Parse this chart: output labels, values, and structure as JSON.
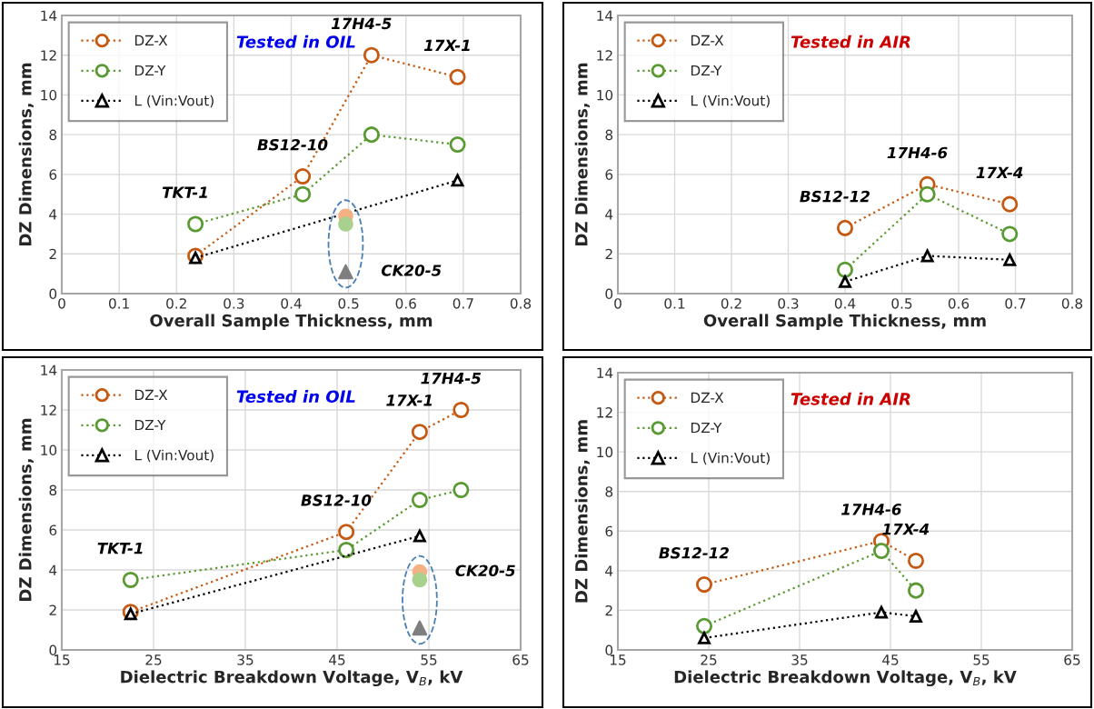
{
  "chart_data": [
    {
      "type": "line",
      "xlabel": "Overall Sample Thickness, mm",
      "ylabel": "DZ Dimensions, mm",
      "xlim": [
        0,
        0.8
      ],
      "xticks": [
        0,
        0.1,
        0.2,
        0.3,
        0.4,
        0.5,
        0.6,
        0.7,
        0.8
      ],
      "ylim": [
        0,
        14
      ],
      "yticks": [
        0,
        2,
        4,
        6,
        8,
        10,
        12,
        14
      ],
      "grid": true,
      "legend": "top left",
      "line_style": "dotted",
      "series": [
        {
          "name": "DZ-X",
          "color": "#c65911",
          "marker": "circle",
          "x": [
            0.233,
            0.42,
            0.54,
            0.69
          ],
          "values": [
            1.9,
            5.9,
            12.0,
            10.9
          ]
        },
        {
          "name": "DZ-Y",
          "color": "#5a9a32",
          "marker": "circle",
          "x": [
            0.233,
            0.42,
            0.54,
            0.69
          ],
          "values": [
            3.5,
            5.0,
            8.0,
            7.5
          ]
        },
        {
          "name": "L (Vin:Vout)",
          "color": "#000000",
          "marker": "triangle",
          "x": [
            0.233,
            0.69
          ],
          "values": [
            1.8,
            5.7
          ]
        },
        {
          "type": "scatter",
          "color": "#f4b183",
          "marker": "circle",
          "x": [
            0.495
          ],
          "values": [
            3.9
          ]
        },
        {
          "type": "scatter",
          "color": "#a9d18e",
          "marker": "circle",
          "x": [
            0.495
          ],
          "values": [
            3.5
          ]
        },
        {
          "type": "scatter",
          "color": "#7f7f7f",
          "marker": "triangle",
          "x": [
            0.495
          ],
          "values": [
            1.1
          ]
        }
      ],
      "annotations": [
        "Tested in OIL",
        {
          "text": "TKT-1",
          "x": 0.233,
          "y": 3.5
        },
        {
          "text": "BS12-10",
          "x": 0.42,
          "y": 5.9
        },
        {
          "text": "17H4-5",
          "x": 0.54,
          "y": 12.0
        },
        {
          "text": "17X-1",
          "x": 0.69,
          "y": 10.9
        },
        {
          "text": "CK20-5",
          "x": 0.495,
          "y": 1.1
        }
      ]
    },
    {
      "type": "line",
      "xlabel": "Overall Sample Thickness, mm",
      "ylabel": "DZ Dimensions, mm",
      "xlim": [
        0,
        0.8
      ],
      "xticks": [
        0,
        0.1,
        0.2,
        0.3,
        0.4,
        0.5,
        0.6,
        0.7,
        0.8
      ],
      "ylim": [
        0,
        14
      ],
      "yticks": [
        0,
        2,
        4,
        6,
        8,
        10,
        12,
        14
      ],
      "grid": true,
      "legend": "top left",
      "line_style": "dotted",
      "series": [
        {
          "name": "DZ-X",
          "color": "#c65911",
          "marker": "circle",
          "x": [
            0.4,
            0.545,
            0.69
          ],
          "values": [
            3.3,
            5.5,
            4.5
          ]
        },
        {
          "name": "DZ-Y",
          "color": "#5a9a32",
          "marker": "circle",
          "x": [
            0.4,
            0.545,
            0.69
          ],
          "values": [
            1.2,
            5.0,
            3.0
          ]
        },
        {
          "name": "L (Vin:Vout)",
          "color": "#000000",
          "marker": "triangle",
          "x": [
            0.4,
            0.545,
            0.69
          ],
          "values": [
            0.6,
            1.9,
            1.7
          ]
        }
      ],
      "annotations": [
        "Tested in AIR",
        {
          "text": "BS12-12",
          "x": 0.4,
          "y": 3.3
        },
        {
          "text": "17H4-6",
          "x": 0.545,
          "y": 5.5
        },
        {
          "text": "17X-4",
          "x": 0.69,
          "y": 4.5
        }
      ]
    },
    {
      "type": "line",
      "xlabel": "Dielectric Breakdown Voltage, V$_{B}$, kV",
      "ylabel": "DZ Dimensions, mm",
      "xlim": [
        15,
        65
      ],
      "xticks": [
        15,
        25,
        35,
        45,
        55,
        65
      ],
      "ylim": [
        0,
        14
      ],
      "yticks": [
        0,
        2,
        4,
        6,
        8,
        10,
        12,
        14
      ],
      "grid": true,
      "legend": "top left",
      "line_style": "dotted",
      "series": [
        {
          "name": "DZ-X",
          "color": "#c65911",
          "marker": "circle",
          "x": [
            22.5,
            46,
            54,
            58.5
          ],
          "values": [
            1.9,
            5.9,
            10.9,
            12.0
          ]
        },
        {
          "name": "DZ-Y",
          "color": "#5a9a32",
          "marker": "circle",
          "x": [
            22.5,
            46,
            54,
            58.5
          ],
          "values": [
            3.5,
            5.0,
            7.5,
            8.0
          ]
        },
        {
          "name": "L (Vin:Vout)",
          "color": "#000000",
          "marker": "triangle",
          "x": [
            22.5,
            54
          ],
          "values": [
            1.8,
            5.7
          ]
        },
        {
          "type": "scatter",
          "color": "#f4b183",
          "marker": "circle",
          "x": [
            54
          ],
          "values": [
            3.9
          ]
        },
        {
          "type": "scatter",
          "color": "#a9d18e",
          "marker": "circle",
          "x": [
            54
          ],
          "values": [
            3.5
          ]
        },
        {
          "type": "scatter",
          "color": "#7f7f7f",
          "marker": "triangle",
          "x": [
            54
          ],
          "values": [
            1.1
          ]
        }
      ],
      "annotations": [
        "Tested in OIL",
        {
          "text": "TKT-1",
          "x": 22.5,
          "y": 3.5
        },
        {
          "text": "BS12-10",
          "x": 46,
          "y": 5.9
        },
        {
          "text": "17X-1",
          "x": 54,
          "y": 10.9
        },
        {
          "text": "17H4-5",
          "x": 58.5,
          "y": 12.0
        },
        {
          "text": "CK20-5",
          "x": 54,
          "y": 3.9
        }
      ]
    },
    {
      "type": "line",
      "xlabel": "Dielectric Breakdown Voltage, V$_{B}$, kV",
      "ylabel": "DZ Dimensions, mm",
      "xlim": [
        15,
        65
      ],
      "xticks": [
        15,
        25,
        35,
        45,
        55,
        65
      ],
      "ylim": [
        0,
        14
      ],
      "yticks": [
        0,
        2,
        4,
        6,
        8,
        10,
        12,
        14
      ],
      "grid": true,
      "legend": "top left",
      "line_style": "dotted",
      "series": [
        {
          "name": "DZ-X",
          "color": "#c65911",
          "marker": "circle",
          "x": [
            24.5,
            44,
            47.8
          ],
          "values": [
            3.3,
            5.5,
            4.5
          ]
        },
        {
          "name": "DZ-Y",
          "color": "#5a9a32",
          "marker": "circle",
          "x": [
            24.5,
            44,
            47.8
          ],
          "values": [
            1.2,
            5.0,
            3.0
          ]
        },
        {
          "name": "L (Vin:Vout)",
          "color": "#000000",
          "marker": "triangle",
          "x": [
            24.5,
            44,
            47.8
          ],
          "values": [
            0.6,
            1.9,
            1.7
          ]
        }
      ],
      "annotations": [
        "Tested in AIR",
        {
          "text": "BS12-12",
          "x": 24.5,
          "y": 3.3
        },
        {
          "text": "17H4-6",
          "x": 44,
          "y": 5.5
        },
        {
          "text": "17X-4",
          "x": 47.8,
          "y": 4.5
        }
      ]
    }
  ]
}
